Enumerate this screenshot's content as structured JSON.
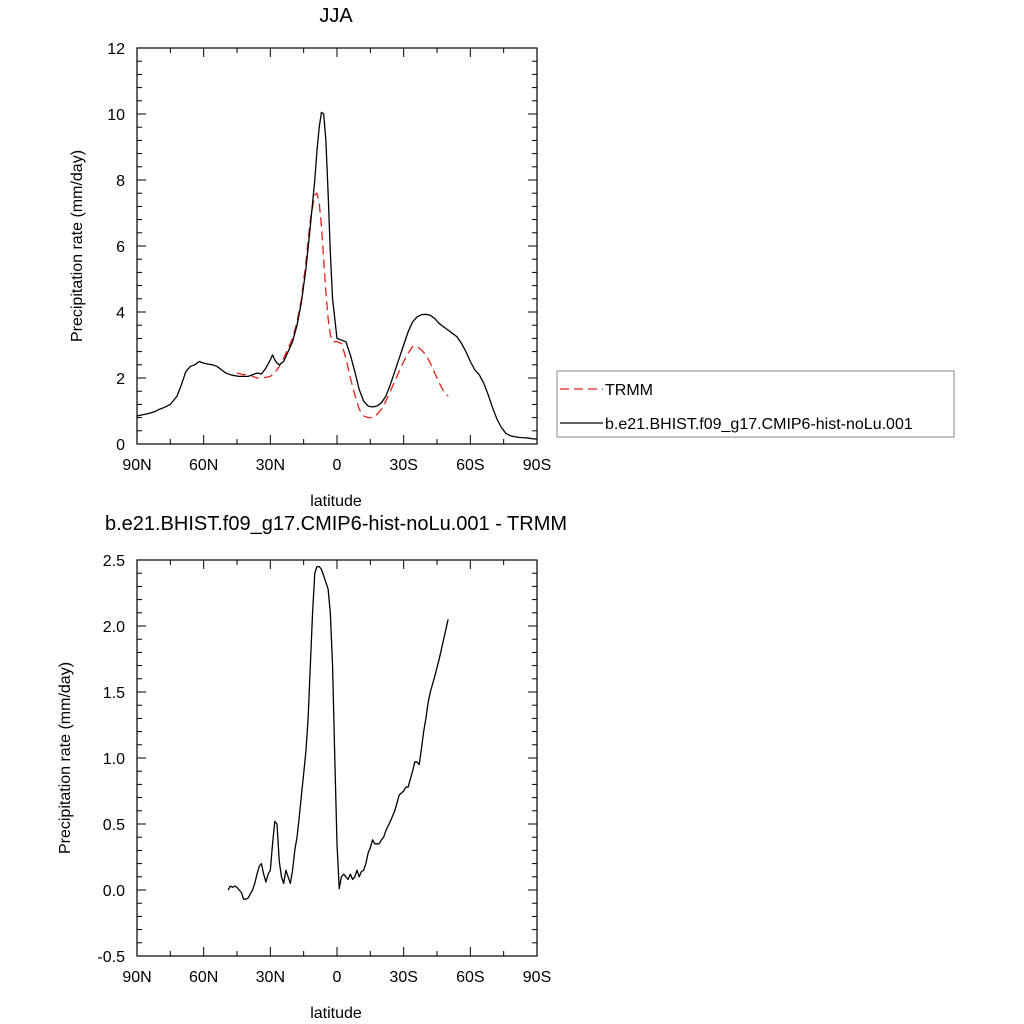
{
  "chart_data": [
    {
      "type": "line",
      "title": "JJA",
      "xlabel": "latitude",
      "ylabel": "Precipitation rate (mm/day)",
      "xlim": [
        90,
        -90
      ],
      "ylim": [
        0,
        12
      ],
      "xticks": [
        {
          "value": 90,
          "label": "90N"
        },
        {
          "value": 60,
          "label": "60N"
        },
        {
          "value": 30,
          "label": "30N"
        },
        {
          "value": 0,
          "label": "0"
        },
        {
          "value": -30,
          "label": "30S"
        },
        {
          "value": -60,
          "label": "60S"
        },
        {
          "value": -90,
          "label": "90S"
        }
      ],
      "yticks": [
        {
          "value": 0,
          "label": "0"
        },
        {
          "value": 2,
          "label": "2"
        },
        {
          "value": 4,
          "label": "4"
        },
        {
          "value": 6,
          "label": "6"
        },
        {
          "value": 8,
          "label": "8"
        },
        {
          "value": 10,
          "label": "10"
        },
        {
          "value": 12,
          "label": "12"
        }
      ],
      "legend": {
        "placement": "right"
      },
      "series": [
        {
          "name": "TRMM",
          "color": "#e8201c",
          "dash": true,
          "x": [
            45,
            42,
            40,
            38,
            36,
            34,
            32,
            30,
            28,
            26,
            24,
            22,
            20,
            18,
            16,
            14,
            12,
            10,
            9,
            8,
            7,
            6,
            5,
            4,
            3,
            2,
            0,
            -2,
            -4,
            -6,
            -8,
            -10,
            -12,
            -14,
            -16,
            -18,
            -20,
            -22,
            -24,
            -26,
            -28,
            -30,
            -32,
            -34,
            -36,
            -38,
            -40,
            -42,
            -44,
            -46,
            -48,
            -50
          ],
          "y": [
            2.15,
            2.1,
            2.12,
            2.05,
            2.0,
            2.0,
            2.02,
            2.05,
            2.15,
            2.35,
            2.6,
            2.9,
            3.2,
            3.7,
            4.4,
            5.5,
            6.8,
            7.55,
            7.6,
            7.3,
            6.6,
            5.6,
            4.6,
            3.8,
            3.3,
            3.1,
            3.1,
            3.05,
            2.6,
            2.0,
            1.5,
            1.05,
            0.85,
            0.8,
            0.8,
            0.9,
            1.05,
            1.3,
            1.6,
            1.9,
            2.2,
            2.5,
            2.75,
            2.95,
            2.95,
            2.85,
            2.7,
            2.45,
            2.15,
            1.85,
            1.6,
            1.45
          ]
        },
        {
          "name": "b.e21.BHIST.f09_g17.CMIP6-hist-noLu.001",
          "color": "#000000",
          "dash": false,
          "x": [
            90,
            88,
            85,
            82,
            80,
            78,
            75,
            72,
            70,
            68,
            66,
            64,
            62,
            60,
            58,
            56,
            54,
            52,
            50,
            48,
            46,
            44,
            42,
            40,
            38,
            36,
            34,
            32,
            30,
            29,
            28,
            27,
            26,
            24,
            22,
            20,
            18,
            16,
            14,
            12,
            10,
            9,
            8,
            7,
            6,
            5,
            4,
            3,
            2,
            0,
            -2,
            -4,
            -6,
            -8,
            -10,
            -12,
            -14,
            -16,
            -18,
            -20,
            -22,
            -24,
            -26,
            -28,
            -30,
            -32,
            -34,
            -36,
            -38,
            -40,
            -42,
            -44,
            -46,
            -48,
            -50,
            -52,
            -54,
            -56,
            -58,
            -60,
            -62,
            -64,
            -66,
            -68,
            -70,
            -72,
            -74,
            -76,
            -78,
            -80,
            -82,
            -84,
            -86,
            -88,
            -90
          ],
          "y": [
            0.85,
            0.88,
            0.92,
            0.98,
            1.05,
            1.1,
            1.2,
            1.45,
            1.8,
            2.2,
            2.35,
            2.4,
            2.5,
            2.45,
            2.42,
            2.4,
            2.35,
            2.25,
            2.15,
            2.1,
            2.07,
            2.05,
            2.05,
            2.05,
            2.1,
            2.15,
            2.12,
            2.3,
            2.55,
            2.7,
            2.55,
            2.45,
            2.4,
            2.5,
            2.8,
            3.1,
            3.6,
            4.3,
            5.3,
            6.6,
            8.0,
            8.9,
            9.6,
            10.05,
            10.0,
            9.2,
            7.6,
            5.8,
            4.4,
            3.2,
            3.15,
            3.1,
            2.7,
            2.2,
            1.65,
            1.3,
            1.15,
            1.12,
            1.15,
            1.25,
            1.45,
            1.8,
            2.2,
            2.6,
            3.0,
            3.4,
            3.7,
            3.85,
            3.92,
            3.93,
            3.9,
            3.8,
            3.65,
            3.55,
            3.45,
            3.35,
            3.25,
            3.05,
            2.8,
            2.5,
            2.25,
            2.1,
            1.85,
            1.5,
            1.1,
            0.75,
            0.5,
            0.32,
            0.25,
            0.22,
            0.2,
            0.19,
            0.18,
            0.16,
            0.15
          ]
        }
      ]
    },
    {
      "type": "line",
      "title": "b.e21.BHIST.f09_g17.CMIP6-hist-noLu.001 - TRMM",
      "xlabel": "latitude",
      "ylabel": "Precipitation rate (mm/day)",
      "xlim": [
        90,
        -90
      ],
      "ylim": [
        -0.5,
        2.5
      ],
      "xticks": [
        {
          "value": 90,
          "label": "90N"
        },
        {
          "value": 60,
          "label": "60N"
        },
        {
          "value": 30,
          "label": "30N"
        },
        {
          "value": 0,
          "label": "0"
        },
        {
          "value": -30,
          "label": "30S"
        },
        {
          "value": -60,
          "label": "60S"
        },
        {
          "value": -90,
          "label": "90S"
        }
      ],
      "yticks": [
        {
          "value": -0.5,
          "label": "-0.5"
        },
        {
          "value": 0.0,
          "label": "0.0"
        },
        {
          "value": 0.5,
          "label": "0.5"
        },
        {
          "value": 1.0,
          "label": "1.0"
        },
        {
          "value": 1.5,
          "label": "1.5"
        },
        {
          "value": 2.0,
          "label": "2.0"
        },
        {
          "value": 2.5,
          "label": "2.5"
        }
      ],
      "series": [
        {
          "color": "#000000",
          "dash": false,
          "x": [
            49,
            48,
            47,
            46,
            45,
            44,
            43,
            42,
            41,
            40,
            39,
            38,
            37,
            36,
            35,
            34,
            33,
            32,
            31,
            30,
            29,
            28,
            27,
            26,
            25,
            24,
            23,
            22,
            21,
            20,
            19,
            18,
            17,
            16,
            15,
            14,
            13,
            12,
            11,
            10,
            9,
            8,
            7,
            6,
            5,
            4,
            3,
            2,
            1,
            0,
            -1,
            -2,
            -3,
            -4,
            -5,
            -6,
            -7,
            -8,
            -9,
            -10,
            -11,
            -12,
            -13,
            -14,
            -15,
            -16,
            -17,
            -18,
            -19,
            -20,
            -21,
            -22,
            -24,
            -26,
            -28,
            -30,
            -31,
            -32,
            -34,
            -35,
            -36,
            -37,
            -38,
            -39,
            -40,
            -41,
            -42,
            -44,
            -46,
            -48,
            -50
          ],
          "y": [
            0.0,
            0.03,
            0.02,
            0.03,
            0.02,
            0.0,
            -0.02,
            -0.07,
            -0.07,
            -0.06,
            -0.03,
            0.0,
            0.05,
            0.12,
            0.18,
            0.2,
            0.12,
            0.06,
            0.12,
            0.15,
            0.35,
            0.52,
            0.5,
            0.22,
            0.1,
            0.05,
            0.15,
            0.1,
            0.05,
            0.15,
            0.3,
            0.4,
            0.55,
            0.72,
            0.88,
            1.05,
            1.3,
            1.7,
            2.1,
            2.4,
            2.45,
            2.45,
            2.43,
            2.38,
            2.33,
            2.28,
            2.1,
            1.7,
            1.0,
            0.35,
            0.01,
            0.1,
            0.12,
            0.1,
            0.08,
            0.12,
            0.08,
            0.1,
            0.15,
            0.1,
            0.14,
            0.15,
            0.2,
            0.28,
            0.32,
            0.38,
            0.35,
            0.35,
            0.35,
            0.38,
            0.4,
            0.45,
            0.52,
            0.6,
            0.72,
            0.75,
            0.78,
            0.78,
            0.9,
            0.97,
            0.97,
            0.95,
            1.07,
            1.2,
            1.3,
            1.42,
            1.5,
            1.62,
            1.75,
            1.9,
            2.05
          ]
        }
      ]
    }
  ]
}
